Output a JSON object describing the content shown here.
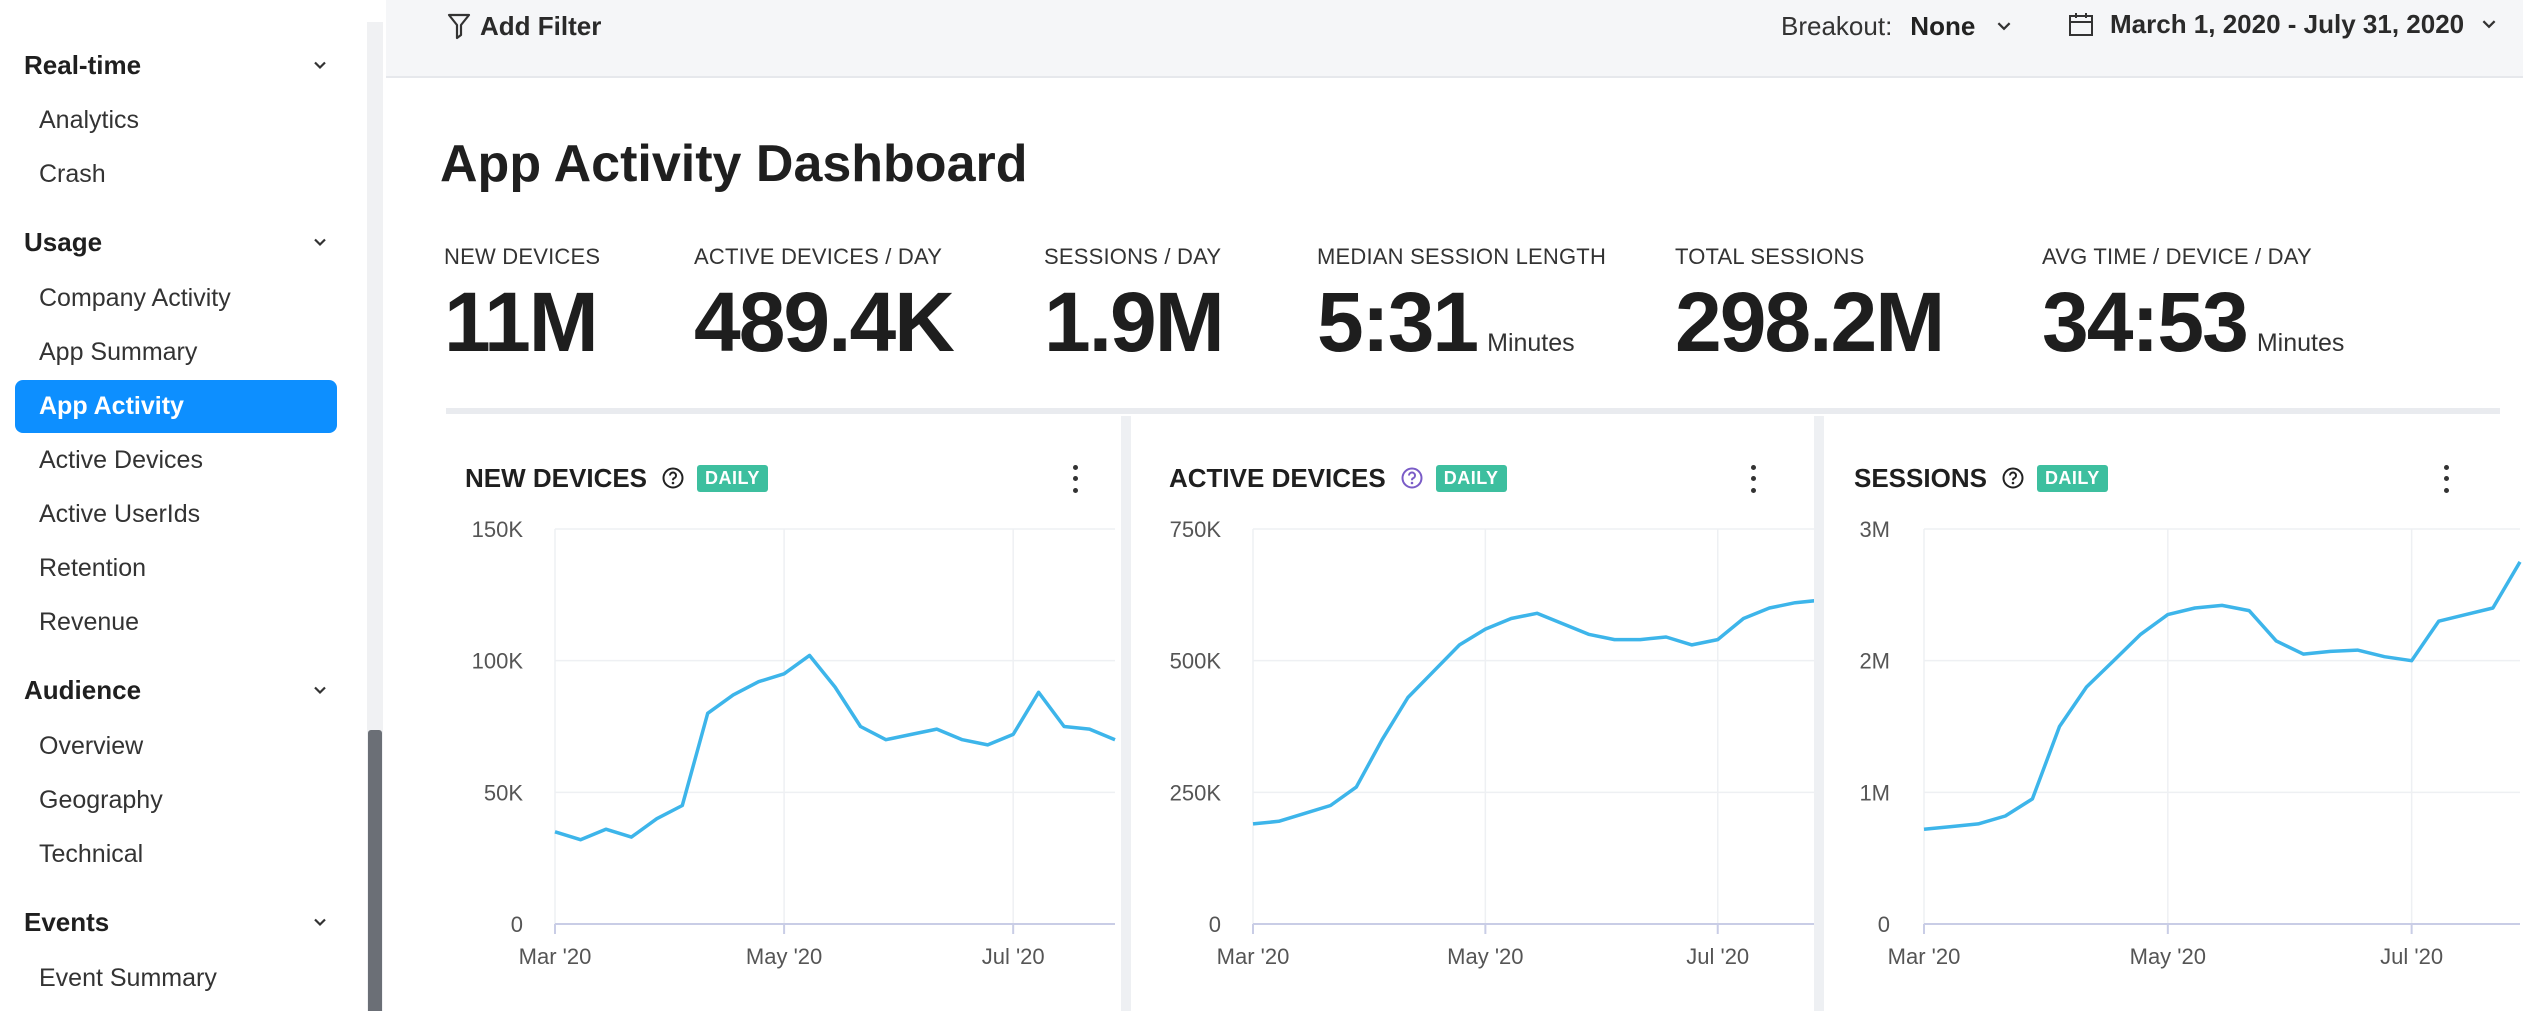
{
  "sidebar": {
    "sections": [
      {
        "label": "Real-time",
        "items": [
          "Analytics",
          "Crash"
        ]
      },
      {
        "label": "Usage",
        "items": [
          "Company Activity",
          "App Summary",
          "App Activity",
          "Active Devices",
          "Active UserIds",
          "Retention",
          "Revenue"
        ]
      },
      {
        "label": "Audience",
        "items": [
          "Overview",
          "Geography",
          "Technical"
        ]
      },
      {
        "label": "Events",
        "items": [
          "Event Summary"
        ]
      }
    ],
    "active_item": "App Activity"
  },
  "topbar": {
    "add_filter_label": "Add Filter",
    "breakout_label": "Breakout:",
    "breakout_value": "None",
    "date_range": "March 1, 2020 - July 31, 2020"
  },
  "page_title": "App Activity Dashboard",
  "stats": [
    {
      "label": "NEW DEVICES",
      "value": "11M",
      "unit": ""
    },
    {
      "label": "ACTIVE DEVICES / DAY",
      "value": "489.4K",
      "unit": ""
    },
    {
      "label": "SESSIONS / DAY",
      "value": "1.9M",
      "unit": ""
    },
    {
      "label": "MEDIAN SESSION LENGTH",
      "value": "5:31",
      "unit": "Minutes"
    },
    {
      "label": "TOTAL SESSIONS",
      "value": "298.2M",
      "unit": ""
    },
    {
      "label": "AVG TIME / DEVICE / DAY",
      "value": "34:53",
      "unit": "Minutes"
    }
  ],
  "colors": {
    "accent": "#0d8fff",
    "line": "#3db5ea",
    "badge": "#3dbf9f",
    "help_active": "#7a5cc7"
  },
  "chart_data": [
    {
      "type": "line",
      "title": "NEW DEVICES",
      "badge": "DAILY",
      "x": [
        "Mar 1",
        "Mar 8",
        "Mar 15",
        "Mar 22",
        "Mar 29",
        "Apr 5",
        "Apr 12",
        "Apr 19",
        "Apr 26",
        "May 3",
        "May 10",
        "May 17",
        "May 24",
        "May 31",
        "Jun 7",
        "Jun 14",
        "Jun 21",
        "Jun 28",
        "Jul 5",
        "Jul 12",
        "Jul 19",
        "Jul 26",
        "Jul 31"
      ],
      "series": [
        {
          "values": [
            35000,
            32000,
            36000,
            33000,
            40000,
            45000,
            80000,
            87000,
            92000,
            95000,
            102000,
            90000,
            75000,
            70000,
            72000,
            74000,
            70000,
            68000,
            72000,
            88000,
            75000,
            74000,
            70000
          ]
        }
      ],
      "xticks": [
        "Mar '20",
        "May '20",
        "Jul '20"
      ],
      "yticks": [
        "0",
        "50K",
        "100K",
        "150K"
      ],
      "ylim": [
        0,
        150000
      ]
    },
    {
      "type": "line",
      "title": "ACTIVE DEVICES",
      "badge": "DAILY",
      "x": [
        "Mar 1",
        "Mar 8",
        "Mar 15",
        "Mar 22",
        "Mar 29",
        "Apr 5",
        "Apr 12",
        "Apr 19",
        "Apr 26",
        "May 3",
        "May 10",
        "May 17",
        "May 24",
        "May 31",
        "Jun 7",
        "Jun 14",
        "Jun 21",
        "Jun 28",
        "Jul 5",
        "Jul 12",
        "Jul 19",
        "Jul 26",
        "Jul 31"
      ],
      "series": [
        {
          "values": [
            190000,
            195000,
            210000,
            225000,
            260000,
            350000,
            430000,
            480000,
            530000,
            560000,
            580000,
            590000,
            570000,
            550000,
            540000,
            540000,
            545000,
            530000,
            540000,
            580000,
            600000,
            610000,
            615000
          ]
        }
      ],
      "xticks": [
        "Mar '20",
        "May '20",
        "Jul '20"
      ],
      "yticks": [
        "0",
        "250K",
        "500K",
        "750K"
      ],
      "ylim": [
        0,
        750000
      ]
    },
    {
      "type": "line",
      "title": "SESSIONS",
      "badge": "DAILY",
      "x": [
        "Mar 1",
        "Mar 8",
        "Mar 15",
        "Mar 22",
        "Mar 29",
        "Apr 5",
        "Apr 12",
        "Apr 19",
        "Apr 26",
        "May 3",
        "May 10",
        "May 17",
        "May 24",
        "May 31",
        "Jun 7",
        "Jun 14",
        "Jun 21",
        "Jun 28",
        "Jul 5",
        "Jul 12",
        "Jul 19",
        "Jul 26",
        "Jul 31"
      ],
      "series": [
        {
          "values": [
            720000,
            740000,
            760000,
            820000,
            950000,
            1500000,
            1800000,
            2000000,
            2200000,
            2350000,
            2400000,
            2420000,
            2380000,
            2150000,
            2050000,
            2070000,
            2080000,
            2030000,
            2000000,
            2300000,
            2350000,
            2400000,
            2750000
          ]
        }
      ],
      "xticks": [
        "Mar '20",
        "May '20",
        "Jul '20"
      ],
      "yticks": [
        "0",
        "1M",
        "2M",
        "3M"
      ],
      "ylim": [
        0,
        3000000
      ]
    }
  ]
}
